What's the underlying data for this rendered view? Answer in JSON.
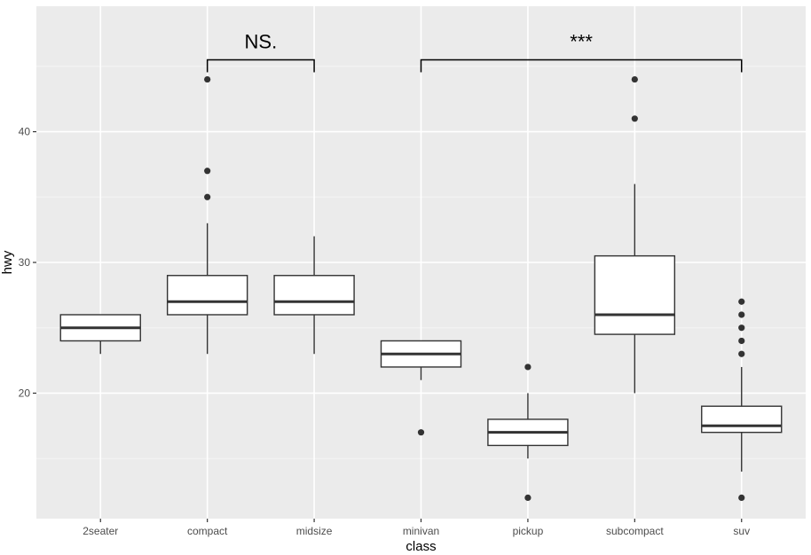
{
  "chart_data": {
    "type": "box",
    "xlabel": "class",
    "ylabel": "hwy",
    "categories": [
      "2seater",
      "compact",
      "midsize",
      "minivan",
      "pickup",
      "subcompact",
      "suv"
    ],
    "ylim": [
      10.4,
      49.6
    ],
    "yticks": [
      20,
      30,
      40
    ],
    "grid": true,
    "boxes": [
      {
        "category": "2seater",
        "q1": 24,
        "median": 25,
        "q3": 26,
        "whisker_low": 23,
        "whisker_high": 26,
        "outliers": []
      },
      {
        "category": "compact",
        "q1": 26,
        "median": 27,
        "q3": 29,
        "whisker_low": 23,
        "whisker_high": 33,
        "outliers": [
          35,
          37,
          44
        ]
      },
      {
        "category": "midsize",
        "q1": 26,
        "median": 27,
        "q3": 29,
        "whisker_low": 23,
        "whisker_high": 32,
        "outliers": []
      },
      {
        "category": "minivan",
        "q1": 22,
        "median": 23,
        "q3": 24,
        "whisker_low": 21,
        "whisker_high": 24,
        "outliers": [
          17
        ]
      },
      {
        "category": "pickup",
        "q1": 16,
        "median": 17,
        "q3": 18,
        "whisker_low": 15,
        "whisker_high": 20,
        "outliers": [
          12,
          22
        ]
      },
      {
        "category": "subcompact",
        "q1": 24.5,
        "median": 26,
        "q3": 30.5,
        "whisker_low": 20,
        "whisker_high": 36,
        "outliers": [
          41,
          44
        ]
      },
      {
        "category": "suv",
        "q1": 17,
        "median": 17.5,
        "q3": 19,
        "whisker_low": 14,
        "whisker_high": 22,
        "outliers": [
          12,
          23,
          24,
          25,
          26,
          27
        ]
      }
    ],
    "annotations": [
      {
        "from": "compact",
        "to": "midsize",
        "y": 45.5,
        "tip_y": 44.5,
        "label": "NS."
      },
      {
        "from": "minivan",
        "to": "suv",
        "y": 45.5,
        "tip_y": 44.5,
        "label": "***"
      }
    ]
  },
  "colors": {
    "panel_bg": "#ebebeb",
    "grid_major": "#ffffff",
    "grid_minor": "#f5f5f5",
    "box_fill": "#ffffff",
    "box_line": "#333333",
    "annotation": "#000000"
  }
}
